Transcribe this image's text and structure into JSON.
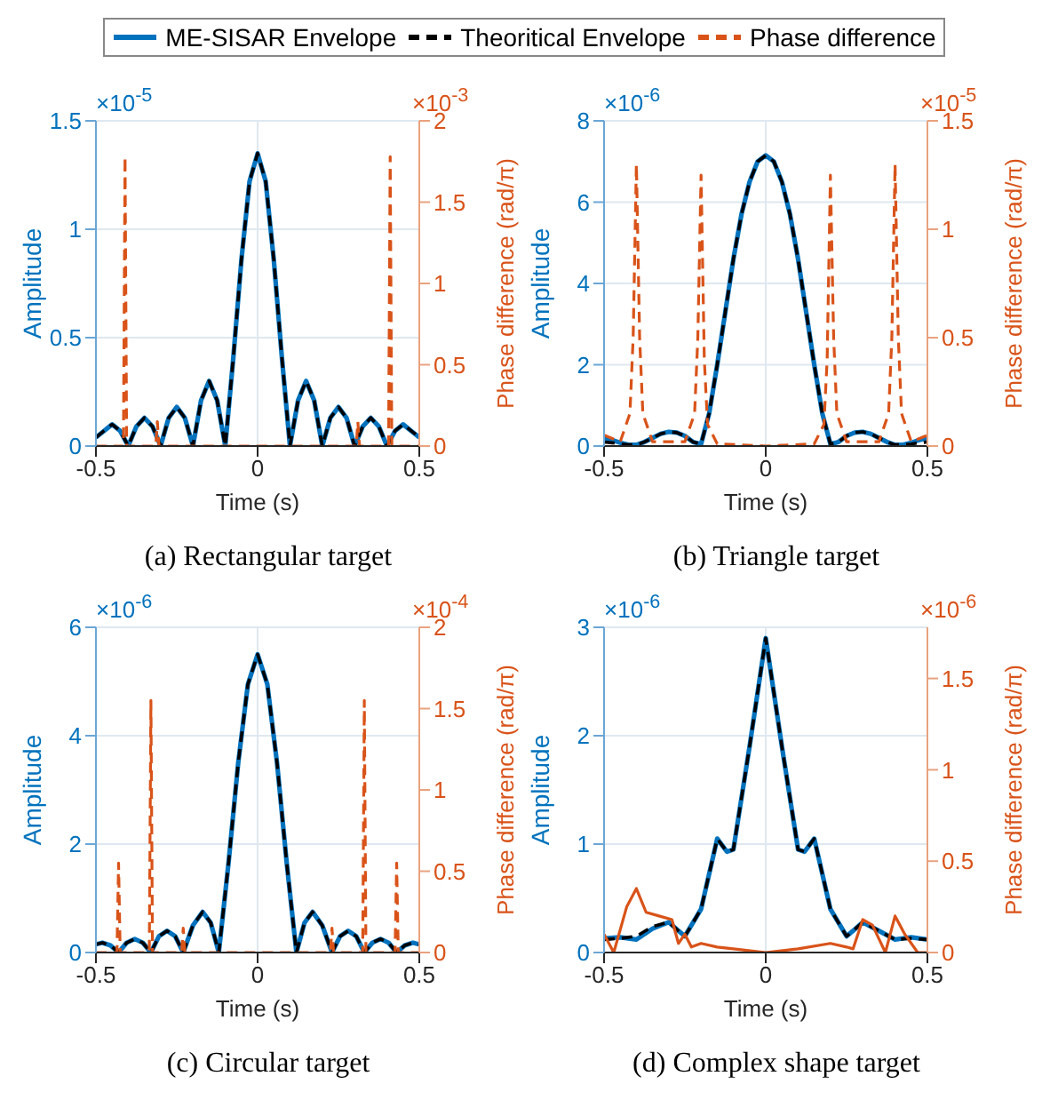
{
  "chart_data": [
    {
      "type": "line",
      "title": "(a) Rectangular target",
      "xlabel": "Time (s)",
      "ylabel": "Amplitude",
      "y2label": "Phase difference (rad/π)",
      "annotations": [
        "×10$^{-5}$",
        "×10$^{-3}$"
      ],
      "xlim": [
        -0.5,
        0.5
      ],
      "xticks": [
        -0.5,
        0,
        0.5
      ],
      "ylim": [
        0,
        1.5
      ],
      "yticks": [
        0,
        0.5,
        1,
        1.5
      ],
      "y2lim": [
        0,
        2
      ],
      "y2ticks": [
        0,
        0.5,
        1,
        1.5,
        2
      ],
      "grid": true,
      "legend": "top",
      "series": [
        {
          "name": "ME-SISAR Envelope",
          "color": "#0072bd",
          "line_style": "solid",
          "x": [
            -0.5,
            -0.475,
            -0.45,
            -0.425,
            -0.4,
            -0.375,
            -0.35,
            -0.325,
            -0.3,
            -0.275,
            -0.25,
            -0.225,
            -0.2,
            -0.175,
            -0.15,
            -0.125,
            -0.1,
            -0.075,
            -0.05,
            -0.025,
            0,
            0.025,
            0.05,
            0.075,
            0.1,
            0.125,
            0.15,
            0.175,
            0.2,
            0.225,
            0.25,
            0.275,
            0.3,
            0.325,
            0.35,
            0.375,
            0.4,
            0.425,
            0.45,
            0.475,
            0.5
          ],
          "values": [
            0.04,
            0.07,
            0.1,
            0.07,
            0,
            0.09,
            0.13,
            0.09,
            0,
            0.13,
            0.18,
            0.13,
            0,
            0.21,
            0.3,
            0.21,
            0,
            0.41,
            0.86,
            1.22,
            1.35,
            1.22,
            0.86,
            0.41,
            0,
            0.21,
            0.3,
            0.21,
            0,
            0.13,
            0.18,
            0.13,
            0,
            0.09,
            0.13,
            0.09,
            0,
            0.07,
            0.1,
            0.07,
            0.04
          ]
        },
        {
          "name": "Theoritical Envelope",
          "color": "#000000",
          "line_style": "dashed",
          "x": [
            -0.5,
            -0.475,
            -0.45,
            -0.425,
            -0.4,
            -0.375,
            -0.35,
            -0.325,
            -0.3,
            -0.275,
            -0.25,
            -0.225,
            -0.2,
            -0.175,
            -0.15,
            -0.125,
            -0.1,
            -0.075,
            -0.05,
            -0.025,
            0,
            0.025,
            0.05,
            0.075,
            0.1,
            0.125,
            0.15,
            0.175,
            0.2,
            0.225,
            0.25,
            0.275,
            0.3,
            0.325,
            0.35,
            0.375,
            0.4,
            0.425,
            0.45,
            0.475,
            0.5
          ],
          "values": [
            0.04,
            0.07,
            0.1,
            0.07,
            0,
            0.09,
            0.13,
            0.09,
            0,
            0.13,
            0.18,
            0.13,
            0,
            0.21,
            0.3,
            0.21,
            0,
            0.41,
            0.86,
            1.22,
            1.35,
            1.22,
            0.86,
            0.41,
            0,
            0.21,
            0.3,
            0.21,
            0,
            0.13,
            0.18,
            0.13,
            0,
            0.09,
            0.13,
            0.09,
            0,
            0.07,
            0.1,
            0.07,
            0.04
          ]
        },
        {
          "name": "Phase difference",
          "color": "#d95319",
          "line_style": "dashed",
          "axis": "y2",
          "x": [
            -0.5,
            -0.415,
            -0.41,
            -0.405,
            -0.315,
            -0.31,
            -0.305,
            0.305,
            0.31,
            0.315,
            0.405,
            0.41,
            0.415,
            0.5
          ],
          "values": [
            0,
            0,
            1.78,
            0,
            0,
            0.15,
            0,
            0,
            0.15,
            0,
            0,
            1.78,
            0,
            0
          ]
        }
      ]
    },
    {
      "type": "line",
      "title": "(b) Triangle target",
      "xlabel": "Time (s)",
      "ylabel": "Amplitude",
      "y2label": "Phase difference (rad/π)",
      "annotations": [
        "×10$^{-6}$",
        "×10$^{-5}$"
      ],
      "xlim": [
        -0.5,
        0.5
      ],
      "xticks": [
        -0.5,
        0,
        0.5
      ],
      "ylim": [
        0,
        8
      ],
      "yticks": [
        0,
        2,
        4,
        6,
        8
      ],
      "y2lim": [
        0,
        1.5
      ],
      "y2ticks": [
        0,
        0.5,
        1,
        1.5
      ],
      "grid": true,
      "series": [
        {
          "color": "#0072bd",
          "line_style": "solid",
          "x": [
            -0.5,
            -0.475,
            -0.45,
            -0.425,
            -0.4,
            -0.375,
            -0.35,
            -0.325,
            -0.3,
            -0.275,
            -0.25,
            -0.225,
            -0.2,
            -0.175,
            -0.15,
            -0.125,
            -0.1,
            -0.075,
            -0.05,
            -0.025,
            0,
            0.025,
            0.05,
            0.075,
            0.1,
            0.125,
            0.15,
            0.175,
            0.2,
            0.225,
            0.25,
            0.275,
            0.3,
            0.325,
            0.35,
            0.375,
            0.4,
            0.425,
            0.45,
            0.475,
            0.5
          ],
          "values": [
            0.2,
            0.15,
            0.08,
            0.03,
            0.03,
            0.1,
            0.2,
            0.3,
            0.35,
            0.33,
            0.25,
            0.1,
            0.05,
            0.8,
            2.0,
            3.3,
            4.6,
            5.7,
            6.5,
            7.0,
            7.15,
            7.0,
            6.5,
            5.7,
            4.6,
            3.3,
            2.0,
            0.8,
            0.05,
            0.1,
            0.25,
            0.33,
            0.35,
            0.3,
            0.2,
            0.1,
            0.03,
            0.03,
            0.08,
            0.15,
            0.2
          ]
        },
        {
          "color": "#000000",
          "line_style": "dashed",
          "x": [
            -0.5,
            -0.475,
            -0.45,
            -0.425,
            -0.4,
            -0.375,
            -0.35,
            -0.325,
            -0.3,
            -0.275,
            -0.25,
            -0.225,
            -0.2,
            -0.175,
            -0.15,
            -0.125,
            -0.1,
            -0.075,
            -0.05,
            -0.025,
            0,
            0.025,
            0.05,
            0.075,
            0.1,
            0.125,
            0.15,
            0.175,
            0.2,
            0.225,
            0.25,
            0.275,
            0.3,
            0.325,
            0.35,
            0.375,
            0.4,
            0.425,
            0.45,
            0.475,
            0.5
          ],
          "values": [
            0.1,
            0.08,
            0.05,
            0.03,
            0.03,
            0.1,
            0.2,
            0.3,
            0.35,
            0.33,
            0.25,
            0.1,
            0.05,
            0.8,
            2.0,
            3.3,
            4.6,
            5.7,
            6.5,
            7.0,
            7.15,
            7.0,
            6.5,
            5.7,
            4.6,
            3.3,
            2.0,
            0.8,
            0.05,
            0.1,
            0.25,
            0.33,
            0.35,
            0.3,
            0.2,
            0.1,
            0.03,
            0.03,
            0.05,
            0.08,
            0.1
          ]
        },
        {
          "color": "#d95319",
          "line_style": "dashed",
          "axis": "y2",
          "x": [
            -0.5,
            -0.45,
            -0.42,
            -0.41,
            -0.4,
            -0.39,
            -0.38,
            -0.35,
            -0.25,
            -0.22,
            -0.21,
            -0.2,
            -0.19,
            -0.18,
            -0.15,
            0,
            0.15,
            0.18,
            0.19,
            0.2,
            0.21,
            0.22,
            0.25,
            0.35,
            0.38,
            0.39,
            0.4,
            0.41,
            0.42,
            0.45,
            0.5
          ],
          "values": [
            0.05,
            0.02,
            0.15,
            0.5,
            1.3,
            0.5,
            0.15,
            0.02,
            0.02,
            0.15,
            0.5,
            1.25,
            0.4,
            0.1,
            0.01,
            0,
            0.01,
            0.1,
            0.4,
            1.25,
            0.5,
            0.15,
            0.02,
            0.02,
            0.15,
            0.5,
            1.3,
            0.5,
            0.15,
            0.02,
            0.05
          ]
        }
      ]
    },
    {
      "type": "line",
      "title": "(c) Circular target",
      "xlabel": "Time (s)",
      "ylabel": "Amplitude",
      "y2label": "Phase difference (rad/π)",
      "annotations": [
        "×10$^{-6}$",
        "×10$^{-4}$"
      ],
      "xlim": [
        -0.5,
        0.5
      ],
      "xticks": [
        -0.5,
        0,
        0.5
      ],
      "ylim": [
        0,
        6
      ],
      "yticks": [
        0,
        2,
        4,
        6
      ],
      "y2lim": [
        0,
        2
      ],
      "y2ticks": [
        0,
        0.5,
        1,
        1.5,
        2
      ],
      "grid": true,
      "series": [
        {
          "color": "#0072bd",
          "line_style": "solid",
          "x": [
            -0.5,
            -0.48,
            -0.455,
            -0.43,
            -0.405,
            -0.38,
            -0.355,
            -0.33,
            -0.305,
            -0.28,
            -0.255,
            -0.23,
            -0.2,
            -0.17,
            -0.145,
            -0.12,
            -0.09,
            -0.06,
            -0.03,
            0,
            0.03,
            0.06,
            0.09,
            0.12,
            0.145,
            0.17,
            0.2,
            0.23,
            0.255,
            0.28,
            0.305,
            0.33,
            0.355,
            0.38,
            0.405,
            0.43,
            0.455,
            0.48,
            0.5
          ],
          "values": [
            0.15,
            0.18,
            0.13,
            0,
            0.18,
            0.25,
            0.18,
            0,
            0.3,
            0.4,
            0.3,
            0,
            0.5,
            0.75,
            0.55,
            0,
            1.65,
            3.5,
            4.95,
            5.5,
            4.95,
            3.5,
            1.65,
            0,
            0.55,
            0.75,
            0.5,
            0,
            0.3,
            0.4,
            0.3,
            0,
            0.18,
            0.25,
            0.18,
            0,
            0.13,
            0.18,
            0.15
          ]
        },
        {
          "color": "#000000",
          "line_style": "dashed",
          "x": [
            -0.5,
            -0.48,
            -0.455,
            -0.43,
            -0.405,
            -0.38,
            -0.355,
            -0.33,
            -0.305,
            -0.28,
            -0.255,
            -0.23,
            -0.2,
            -0.17,
            -0.145,
            -0.12,
            -0.09,
            -0.06,
            -0.03,
            0,
            0.03,
            0.06,
            0.09,
            0.12,
            0.145,
            0.17,
            0.2,
            0.23,
            0.255,
            0.28,
            0.305,
            0.33,
            0.355,
            0.38,
            0.405,
            0.43,
            0.455,
            0.48,
            0.5
          ],
          "values": [
            0.15,
            0.18,
            0.13,
            0,
            0.18,
            0.25,
            0.18,
            0,
            0.3,
            0.4,
            0.3,
            0,
            0.5,
            0.75,
            0.55,
            0,
            1.65,
            3.5,
            4.95,
            5.5,
            4.95,
            3.5,
            1.65,
            0,
            0.55,
            0.75,
            0.5,
            0,
            0.3,
            0.4,
            0.3,
            0,
            0.18,
            0.25,
            0.18,
            0,
            0.13,
            0.18,
            0.15
          ]
        },
        {
          "color": "#d95319",
          "line_style": "dashed",
          "axis": "y2",
          "x": [
            -0.5,
            -0.435,
            -0.43,
            -0.425,
            -0.335,
            -0.33,
            -0.325,
            -0.235,
            -0.23,
            -0.225,
            0.225,
            0.23,
            0.235,
            0.325,
            0.33,
            0.335,
            0.425,
            0.43,
            0.435,
            0.5
          ],
          "values": [
            0,
            0,
            0.55,
            0,
            0,
            1.55,
            0,
            0,
            0.15,
            0,
            0,
            0.15,
            0,
            0,
            1.55,
            0,
            0,
            0.55,
            0,
            0
          ]
        }
      ]
    },
    {
      "type": "line",
      "title": "(d) Complex shape target",
      "xlabel": "Time (s)",
      "ylabel": "Amplitude",
      "y2label": "Phase difference (rad/π)",
      "annotations": [
        "×10$^{-6}$",
        "×10$^{-6}$"
      ],
      "xlim": [
        -0.5,
        0.5
      ],
      "xticks": [
        -0.5,
        0,
        0.5
      ],
      "ylim": [
        0,
        3
      ],
      "yticks": [
        0,
        1,
        2,
        3
      ],
      "y2lim": [
        0,
        1.78
      ],
      "y2ticks": [
        0,
        0.5,
        1,
        1.5
      ],
      "grid": true,
      "series": [
        {
          "color": "#0072bd",
          "line_style": "solid",
          "x": [
            -0.5,
            -0.45,
            -0.4,
            -0.35,
            -0.3,
            -0.27,
            -0.25,
            -0.2,
            -0.15,
            -0.12,
            -0.1,
            -0.05,
            0,
            0.05,
            0.1,
            0.12,
            0.15,
            0.2,
            0.25,
            0.27,
            0.3,
            0.35,
            0.4,
            0.45,
            0.5
          ],
          "values": [
            0.13,
            0.14,
            0.12,
            0.22,
            0.28,
            0.2,
            0.15,
            0.4,
            1.05,
            0.93,
            0.95,
            1.9,
            2.9,
            1.9,
            0.95,
            0.93,
            1.05,
            0.4,
            0.15,
            0.2,
            0.28,
            0.2,
            0.12,
            0.14,
            0.12
          ]
        },
        {
          "color": "#000000",
          "line_style": "dashed",
          "x": [
            -0.5,
            -0.45,
            -0.4,
            -0.35,
            -0.3,
            -0.27,
            -0.25,
            -0.2,
            -0.15,
            -0.12,
            -0.1,
            -0.05,
            0,
            0.05,
            0.1,
            0.12,
            0.15,
            0.2,
            0.25,
            0.27,
            0.3,
            0.35,
            0.4,
            0.45,
            0.5
          ],
          "values": [
            0.12,
            0.13,
            0.15,
            0.24,
            0.28,
            0.2,
            0.15,
            0.4,
            1.05,
            0.93,
            0.95,
            1.9,
            2.9,
            1.9,
            0.95,
            0.93,
            1.05,
            0.4,
            0.15,
            0.2,
            0.28,
            0.2,
            0.12,
            0.13,
            0.12
          ]
        },
        {
          "color": "#d95319",
          "line_style": "solid",
          "axis": "y2",
          "x": [
            -0.5,
            -0.47,
            -0.43,
            -0.4,
            -0.37,
            -0.33,
            -0.29,
            -0.27,
            -0.25,
            -0.23,
            -0.2,
            -0.15,
            -0.1,
            0,
            0.1,
            0.2,
            0.25,
            0.27,
            0.3,
            0.33,
            0.37,
            0.4,
            0.43,
            0.47,
            0.5
          ],
          "values": [
            0.1,
            0,
            0.25,
            0.35,
            0.22,
            0.2,
            0.18,
            0.05,
            0.1,
            0.03,
            0.05,
            0.03,
            0.02,
            0,
            0.02,
            0.05,
            0.03,
            0.02,
            0.18,
            0.15,
            0,
            0.2,
            0.1,
            0,
            0
          ]
        }
      ]
    }
  ]
}
